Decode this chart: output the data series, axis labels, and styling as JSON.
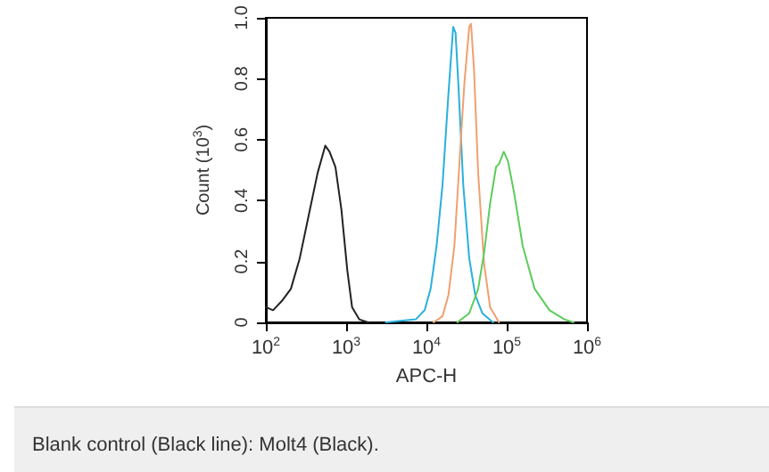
{
  "chart_data": {
    "type": "line",
    "xlabel": "APC-H",
    "ylabel": "Count (10$^{3}$)",
    "annotations": [
      "Blank control (Black line): Molt4 (Black)."
    ],
    "log": "x",
    "xlim": [
      100,
      1000000
    ],
    "xticks": [
      {
        "value": 100,
        "label": "10$^{2}$"
      },
      {
        "value": 1000,
        "label": "10$^{3}$"
      },
      {
        "value": 10000,
        "label": "10$^{4}$"
      },
      {
        "value": 100000,
        "label": "10$^{5}$"
      },
      {
        "value": 1000000,
        "label": "10$^{6}$"
      }
    ],
    "ylim": [
      0,
      1
    ],
    "yticks": [
      0,
      0.2,
      0.4,
      0.6,
      0.8,
      {
        "value": 1,
        "label": "1.0"
      }
    ],
    "grid": false,
    "marker": "none",
    "line_style": "solid",
    "series": [
      {
        "color": "#222222",
        "x": [
          100,
          123,
          158,
          205,
          264,
          341,
          441,
          550,
          621,
          736,
          873,
          1035,
          1186,
          1455,
          1879
        ],
        "values": [
          0.05,
          0.04,
          0.07,
          0.11,
          0.21,
          0.35,
          0.49,
          0.58,
          0.56,
          0.51,
          0.37,
          0.17,
          0.05,
          0.01,
          0
        ]
      },
      {
        "color": "#2ab0dc",
        "x": [
          3133,
          7362,
          9505,
          11270,
          13370,
          15850,
          18800,
          21540,
          23070,
          25120,
          28780,
          34140,
          40480,
          49660,
          67610
        ],
        "values": [
          0,
          0.01,
          0.04,
          0.11,
          0.25,
          0.45,
          0.75,
          0.97,
          0.95,
          0.77,
          0.45,
          0.21,
          0.09,
          0.03,
          0
        ]
      },
      {
        "color": "#f0a070",
        "x": [
          12270,
          15850,
          18800,
          22280,
          26420,
          29780,
          34140,
          35940,
          39150,
          44100,
          52360,
          62090,
          80170
        ],
        "values": [
          0,
          0.02,
          0.09,
          0.25,
          0.57,
          0.79,
          0.97,
          0.98,
          0.83,
          0.49,
          0.19,
          0.05,
          0
        ]
      },
      {
        "color": "#5ccc5c",
        "x": [
          24270,
          34140,
          44100,
          52360,
          62090,
          73620,
          80170,
          91830,
          103500,
          122700,
          158500,
          222800,
          341400,
          523600,
          676100
        ],
        "values": [
          0,
          0.03,
          0.11,
          0.23,
          0.39,
          0.51,
          0.52,
          0.56,
          0.53,
          0.43,
          0.25,
          0.11,
          0.04,
          0.01,
          0
        ]
      }
    ]
  }
}
